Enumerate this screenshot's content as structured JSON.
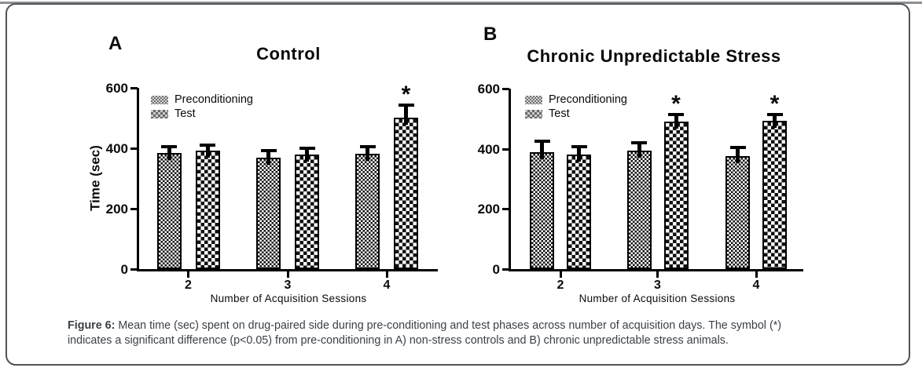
{
  "figure": {
    "caption": {
      "label": "Figure 6:",
      "line1_rest": " Mean time (sec) spent on drug-paired side during pre-conditioning and test phases across number of acquisition days. The symbol (*)",
      "line2": "indicates a significant difference (p<0.05) from pre-conditioning in A) non-stress controls and B) chronic unpredictable stress animals."
    }
  },
  "chart_data": [
    {
      "type": "bar",
      "panel_label": "A",
      "title": "Control",
      "xlabel": "Number of Acquisition Sessions",
      "ylabel": "Time (sec)",
      "ylim": [
        0,
        600
      ],
      "yticks": [
        0,
        200,
        400,
        600
      ],
      "categories": [
        "2",
        "3",
        "4"
      ],
      "legend": [
        "Preconditioning",
        "Test"
      ],
      "series": [
        {
          "name": "Preconditioning",
          "values": [
            385,
            370,
            383
          ],
          "errors": [
            26,
            27,
            27
          ],
          "significant": [
            false,
            false,
            false
          ]
        },
        {
          "name": "Test",
          "values": [
            391,
            378,
            502
          ],
          "errors": [
            25,
            26,
            46
          ],
          "significant": [
            false,
            false,
            true
          ]
        }
      ],
      "significance_symbol": "*",
      "legend_position": "upper-left",
      "grid": false
    },
    {
      "type": "bar",
      "panel_label": "B",
      "title": "Chronic Unpredictable Stress",
      "xlabel": "Number of Acquisition Sessions",
      "ylabel": "",
      "ylim": [
        0,
        600
      ],
      "yticks": [
        0,
        200,
        400,
        600
      ],
      "categories": [
        "2",
        "3",
        "4"
      ],
      "legend": [
        "Preconditioning",
        "Test"
      ],
      "series": [
        {
          "name": "Preconditioning",
          "values": [
            388,
            394,
            375
          ],
          "errors": [
            42,
            31,
            34
          ],
          "significant": [
            false,
            false,
            false
          ]
        },
        {
          "name": "Test",
          "values": [
            380,
            490,
            492
          ],
          "errors": [
            32,
            30,
            28
          ],
          "significant": [
            false,
            true,
            true
          ]
        }
      ],
      "significance_symbol": "*",
      "legend_position": "upper-left",
      "grid": false
    }
  ],
  "colors": {
    "bar_pattern": "#000000",
    "axis": "#000000",
    "caption_text": "#3b4046",
    "frame_border": "#4f5357",
    "top_rule": "#8e9093",
    "background": "#ffffff"
  }
}
